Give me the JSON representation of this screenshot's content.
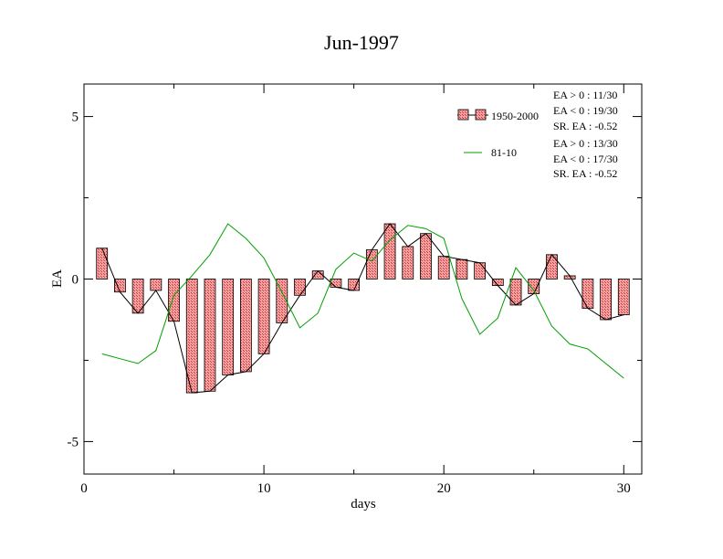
{
  "chart_data": {
    "type": "bar",
    "title": "Jun-1997",
    "xlabel": "days",
    "ylabel": "EA",
    "xlim": [
      0,
      31
    ],
    "ylim": [
      -6,
      6
    ],
    "x_ticks": [
      0,
      10,
      20,
      30
    ],
    "x_tick_labels": [
      "0",
      "10",
      "20",
      "30"
    ],
    "y_ticks": [
      -5,
      0,
      5
    ],
    "y_tick_labels": [
      "-5",
      "0",
      "5"
    ],
    "grid": false,
    "legend_position": "top-right",
    "series": [
      {
        "name": "1950-2000",
        "kind": "bar+line",
        "color": "#e57373",
        "x": [
          1,
          2,
          3,
          4,
          5,
          6,
          7,
          8,
          9,
          10,
          11,
          12,
          13,
          14,
          15,
          16,
          17,
          18,
          19,
          20,
          21,
          22,
          23,
          24,
          25,
          26,
          27,
          28,
          29,
          30
        ],
        "values": [
          0.95,
          -0.4,
          -1.05,
          -0.35,
          -1.3,
          -3.5,
          -3.45,
          -2.95,
          -2.85,
          -2.3,
          -1.35,
          -0.5,
          0.25,
          -0.25,
          -0.35,
          0.9,
          1.7,
          1.0,
          1.4,
          0.7,
          0.6,
          0.5,
          -0.2,
          -0.8,
          -0.45,
          0.75,
          0.1,
          -0.9,
          -1.25,
          -1.1
        ]
      },
      {
        "name": "81-10",
        "kind": "line",
        "color": "#00a000",
        "x": [
          1,
          2,
          3,
          4,
          5,
          6,
          7,
          8,
          9,
          10,
          11,
          12,
          13,
          14,
          15,
          16,
          17,
          18,
          19,
          20,
          21,
          22,
          23,
          24,
          25,
          26,
          27,
          28,
          29,
          30
        ],
        "values": [
          -2.3,
          -2.45,
          -2.6,
          -2.2,
          -0.5,
          0.1,
          0.75,
          1.7,
          1.25,
          0.65,
          -0.4,
          -1.5,
          -1.05,
          0.3,
          0.8,
          0.55,
          1.2,
          1.65,
          1.55,
          1.25,
          -0.6,
          -1.7,
          -1.2,
          0.35,
          -0.35,
          -1.45,
          -2.0,
          -2.15,
          -2.6,
          -3.05
        ]
      }
    ],
    "legend": [
      {
        "label": "1950-2000",
        "stats": [
          "EA > 0 : 11/30",
          "EA < 0 : 19/30",
          "SR. EA : -0.52"
        ]
      },
      {
        "label": "81-10",
        "stats": [
          "EA > 0 : 13/30",
          "EA < 0 : 17/30",
          "SR. EA : -0.52"
        ]
      }
    ]
  }
}
